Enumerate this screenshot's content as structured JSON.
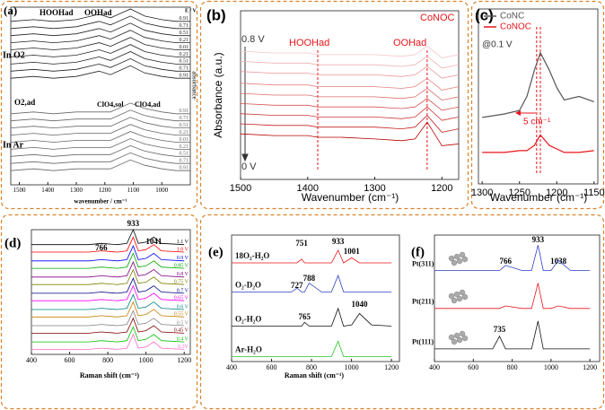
{
  "chart_data": [
    {
      "type": "line",
      "panel_label": "(a)",
      "xlabel": "wavenumber / cm⁻¹",
      "ylabel": "absorbance",
      "annotations": [
        "HOOHad",
        "OOHad",
        "E / V",
        "In O2",
        "O2,ad",
        "ClO4,sol",
        "ClO4,ad",
        "In Ar"
      ],
      "xlim": [
        1530,
        900
      ],
      "ylim": [
        0,
        100
      ],
      "xticks": [
        1500,
        1400,
        1300,
        1200,
        1100,
        1000
      ],
      "x": [
        1530,
        1450,
        1380,
        1300,
        1220,
        1180,
        1110,
        1060,
        1000,
        950,
        900
      ],
      "series": [
        {
          "name": "0.91",
          "color": "#222222",
          "values": [
            92,
            93,
            92,
            93,
            96,
            94,
            99,
            95,
            93,
            92,
            92
          ]
        },
        {
          "name": "0.71",
          "color": "#222222",
          "values": [
            88,
            89,
            88,
            89,
            92,
            90,
            95,
            91,
            89,
            88,
            88
          ]
        },
        {
          "name": "0.51",
          "color": "#222222",
          "values": [
            84,
            85,
            84,
            85,
            88,
            86,
            91,
            87,
            85,
            84,
            84
          ]
        },
        {
          "name": "0.21",
          "color": "#222222",
          "values": [
            80,
            81,
            80,
            81,
            84,
            82,
            87,
            83,
            81,
            80,
            80
          ]
        },
        {
          "name": "0.01",
          "color": "#222222",
          "values": [
            76,
            77,
            76,
            77,
            80,
            78,
            83,
            79,
            77,
            76,
            76
          ]
        },
        {
          "name": "0.21",
          "color": "#222222",
          "values": [
            72,
            73,
            72,
            73,
            76,
            74,
            79,
            75,
            73,
            72,
            72
          ]
        },
        {
          "name": "0.51",
          "color": "#222222",
          "values": [
            68,
            69,
            68,
            69,
            72,
            70,
            75,
            71,
            69,
            68,
            68
          ]
        },
        {
          "name": "0.71",
          "color": "#222222",
          "values": [
            64,
            65,
            64,
            65,
            68,
            66,
            71,
            67,
            65,
            64,
            64
          ]
        },
        {
          "name": "0.91",
          "color": "#222222",
          "values": [
            60,
            61,
            60,
            61,
            64,
            62,
            67,
            63,
            61,
            60,
            60
          ]
        },
        {
          "name": "0.91",
          "color": "#666666",
          "values": [
            40,
            41,
            40,
            41,
            41,
            41,
            46,
            43,
            41,
            40,
            40
          ]
        },
        {
          "name": "0.71",
          "color": "#666666",
          "values": [
            36,
            37,
            36,
            37,
            37,
            37,
            42,
            39,
            37,
            36,
            36
          ]
        },
        {
          "name": "0.51",
          "color": "#666666",
          "values": [
            32,
            33,
            32,
            33,
            33,
            33,
            38,
            35,
            33,
            32,
            32
          ]
        },
        {
          "name": "0.21",
          "color": "#666666",
          "values": [
            28,
            29,
            28,
            29,
            29,
            29,
            34,
            31,
            29,
            28,
            28
          ]
        },
        {
          "name": "0.01",
          "color": "#666666",
          "values": [
            24,
            25,
            24,
            25,
            25,
            25,
            30,
            27,
            25,
            24,
            24
          ]
        },
        {
          "name": "0.21",
          "color": "#666666",
          "values": [
            20,
            21,
            20,
            21,
            21,
            21,
            26,
            23,
            21,
            20,
            20
          ]
        },
        {
          "name": "0.51",
          "color": "#666666",
          "values": [
            16,
            17,
            16,
            17,
            17,
            17,
            22,
            19,
            17,
            16,
            16
          ]
        },
        {
          "name": "0.71",
          "color": "#666666",
          "values": [
            12,
            13,
            12,
            13,
            13,
            13,
            18,
            15,
            13,
            12,
            12
          ]
        },
        {
          "name": "0.91",
          "color": "#666666",
          "values": [
            8,
            9,
            8,
            9,
            9,
            9,
            14,
            11,
            9,
            8,
            8
          ]
        }
      ]
    },
    {
      "type": "line",
      "panel_label": "(b)",
      "xlabel": "Wavenumber (cm⁻¹)",
      "ylabel": "Absorbance (a.u.)",
      "annotations": [
        "CoNOC",
        "0.8 V",
        "0 V",
        "HOOHad",
        "OOHad"
      ],
      "xlim": [
        1500,
        1175
      ],
      "ylim": [
        0,
        100
      ],
      "xticks": [
        1500,
        1400,
        1300,
        1200
      ],
      "markers": [
        1385,
        1222
      ],
      "x": [
        1500,
        1450,
        1400,
        1385,
        1350,
        1300,
        1260,
        1240,
        1222,
        1200,
        1175
      ],
      "series": [
        {
          "color": "#f4c6c6",
          "values": [
            76,
            75,
            75,
            74,
            74,
            74,
            73,
            74,
            79,
            72,
            74
          ]
        },
        {
          "color": "#efb0b0",
          "values": [
            70,
            69,
            69,
            68,
            68,
            68,
            67,
            68,
            73,
            66,
            68
          ]
        },
        {
          "color": "#e99a9a",
          "values": [
            64,
            63,
            63,
            62,
            62,
            62,
            61,
            62,
            67,
            60,
            62
          ]
        },
        {
          "color": "#e48282",
          "values": [
            57,
            56,
            56,
            55,
            55,
            55,
            54,
            55,
            60,
            53,
            55
          ]
        },
        {
          "color": "#de6b6b",
          "values": [
            51,
            50,
            50,
            49,
            49,
            49,
            48,
            49,
            54,
            47,
            49
          ]
        },
        {
          "color": "#d75252",
          "values": [
            45,
            44,
            44,
            43,
            43,
            43,
            42,
            43,
            48,
            41,
            43
          ]
        },
        {
          "color": "#cf3838",
          "values": [
            39,
            38,
            38,
            37,
            37,
            37,
            36,
            37,
            43,
            35,
            37
          ]
        },
        {
          "color": "#c62020",
          "values": [
            33,
            32,
            32,
            31,
            31,
            31,
            30,
            31,
            38,
            28,
            30
          ]
        },
        {
          "color": "#b80000",
          "values": [
            27,
            26,
            26,
            25,
            25,
            24,
            23,
            24,
            34,
            20,
            21
          ]
        }
      ]
    },
    {
      "type": "line",
      "panel_label": "(c)",
      "xlabel": "Wavenumber (cm⁻¹)",
      "annotations": [
        "@0.1 V",
        "5 cm⁻¹"
      ],
      "xlim": [
        1305,
        1145
      ],
      "ylim": [
        0,
        100
      ],
      "xticks": [
        1300,
        1250,
        1200,
        1150
      ],
      "markers": [
        1227,
        1222
      ],
      "legend": "upper left",
      "x": [
        1300,
        1270,
        1250,
        1240,
        1230,
        1222,
        1210,
        1200,
        1190,
        1170,
        1150
      ],
      "series": [
        {
          "name": "CoNC",
          "color": "#555555",
          "values": [
            38,
            40,
            42,
            50,
            65,
            75,
            65,
            55,
            48,
            50,
            47
          ]
        },
        {
          "name": "CoNOC",
          "color": "#e8141a",
          "values": [
            18,
            18,
            19,
            19,
            22,
            28,
            22,
            20,
            18,
            18,
            19
          ]
        }
      ]
    },
    {
      "type": "line",
      "panel_label": "(d)",
      "xlabel": "Raman shift (cm⁻¹)",
      "peak_labels": [
        933,
        766,
        1041
      ],
      "xlim": [
        400,
        1232
      ],
      "ylim": [
        0,
        100
      ],
      "xticks": [
        400,
        600,
        800,
        1000,
        1200
      ],
      "x": [
        400,
        600,
        700,
        766,
        850,
        900,
        933,
        960,
        1000,
        1041,
        1080,
        1200
      ],
      "series": [
        {
          "name": "1.1 V",
          "color": "#000000",
          "values": [
            88,
            88,
            88,
            89,
            88,
            89,
            100,
            89,
            90,
            94,
            89,
            88
          ]
        },
        {
          "name": "1.0 V",
          "color": "#ff0000",
          "values": [
            82,
            82,
            82,
            83,
            82,
            83,
            94,
            83,
            84,
            88,
            83,
            82
          ]
        },
        {
          "name": "0.9 V",
          "color": "#0000ff",
          "values": [
            75,
            75,
            75,
            76,
            75,
            76,
            87,
            76,
            77,
            81,
            76,
            75
          ]
        },
        {
          "name": "0.85 V",
          "color": "#00aa00",
          "values": [
            69,
            69,
            69,
            70,
            69,
            70,
            81,
            70,
            71,
            75,
            70,
            69
          ]
        },
        {
          "name": "0.8 V",
          "color": "#800080",
          "values": [
            62,
            62,
            62,
            63,
            62,
            63,
            74,
            63,
            64,
            68,
            63,
            62
          ]
        },
        {
          "name": "0.75 V",
          "color": "#808000",
          "values": [
            56,
            56,
            56,
            57,
            56,
            57,
            68,
            57,
            58,
            62,
            57,
            56
          ]
        },
        {
          "name": "0.7 V",
          "color": "#000080",
          "values": [
            49,
            49,
            49,
            50,
            49,
            50,
            61,
            50,
            51,
            55,
            50,
            49
          ]
        },
        {
          "name": "0.65 V",
          "color": "#ff00ff",
          "values": [
            43,
            43,
            43,
            44,
            43,
            44,
            55,
            44,
            45,
            49,
            44,
            43
          ]
        },
        {
          "name": "0.6 V",
          "color": "#008080",
          "values": [
            36,
            36,
            36,
            37,
            36,
            37,
            48,
            37,
            38,
            42,
            37,
            36
          ]
        },
        {
          "name": "0.55 V",
          "color": "#c08000",
          "values": [
            30,
            30,
            30,
            31,
            30,
            31,
            42,
            31,
            32,
            36,
            31,
            30
          ]
        },
        {
          "name": "0.5 V",
          "color": "#808080",
          "values": [
            23,
            23,
            23,
            24,
            23,
            24,
            35,
            24,
            25,
            29,
            24,
            23
          ]
        },
        {
          "name": "0.45 V",
          "color": "#800000",
          "values": [
            17,
            17,
            17,
            18,
            17,
            18,
            29,
            18,
            19,
            23,
            18,
            17
          ]
        },
        {
          "name": "0.4 V",
          "color": "#00c000",
          "values": [
            10,
            10,
            10,
            11,
            10,
            11,
            22,
            11,
            12,
            16,
            11,
            10
          ]
        },
        {
          "name": "0.3V",
          "color": "#ff66cc",
          "values": [
            4,
            4,
            4,
            5,
            4,
            5,
            16,
            5,
            6,
            10,
            5,
            4
          ]
        }
      ]
    },
    {
      "type": "line",
      "panel_label": "(e)",
      "xlabel": "Raman shift (cm⁻¹)",
      "peak_labels": [
        751,
        933,
        1001,
        727,
        788,
        765,
        1040
      ],
      "xlim": [
        400,
        1240
      ],
      "ylim": [
        0,
        100
      ],
      "xticks": [
        400,
        600,
        800,
        1000,
        1200
      ],
      "x": [
        400,
        600,
        700,
        727,
        751,
        765,
        788,
        850,
        900,
        933,
        960,
        1001,
        1040,
        1100,
        1200
      ],
      "series": [
        {
          "name": "18O₂-H₂O",
          "color": "#e8141a",
          "values": [
            78,
            78,
            78,
            78,
            81,
            78,
            78,
            78,
            78,
            88,
            78,
            82,
            78,
            78,
            78
          ]
        },
        {
          "name": "O₂-D₂O",
          "color": "#2b3fc4",
          "values": [
            55,
            55,
            55,
            58,
            55,
            55,
            62,
            55,
            55,
            68,
            55,
            55,
            55,
            55,
            55
          ]
        },
        {
          "name": "O₂-H₂O",
          "color": "#111111",
          "values": [
            28,
            28,
            28,
            28,
            28,
            31,
            28,
            28,
            28,
            42,
            28,
            29,
            38,
            29,
            28
          ]
        },
        {
          "name": "Ar-H₂O",
          "color": "#22c422",
          "values": [
            4,
            4,
            4,
            4,
            4,
            4,
            4,
            4,
            4,
            16,
            4,
            4,
            4,
            4,
            4
          ]
        }
      ]
    },
    {
      "type": "line",
      "panel_label": "(f)",
      "peak_labels": [
        933,
        766,
        1038,
        735
      ],
      "xlim": [
        400,
        1250
      ],
      "ylim": [
        0,
        100
      ],
      "xticks": [
        400,
        600,
        800,
        1000,
        1200
      ],
      "x": [
        400,
        600,
        700,
        735,
        766,
        850,
        900,
        933,
        960,
        1000,
        1038,
        1100,
        1200
      ],
      "series": [
        {
          "name": "Pt(311)",
          "color": "#2b3fc4",
          "values": [
            72,
            72,
            72,
            72,
            76,
            72,
            72,
            92,
            72,
            72,
            80,
            72,
            72
          ]
        },
        {
          "name": "Pt(211)",
          "color": "#e8141a",
          "values": [
            42,
            42,
            42,
            42,
            44,
            42,
            42,
            62,
            42,
            42,
            44,
            42,
            42
          ]
        },
        {
          "name": "Pt(111)",
          "color": "#111111",
          "values": [
            10,
            10,
            10,
            20,
            10,
            10,
            10,
            32,
            10,
            10,
            10,
            10,
            10
          ]
        }
      ]
    }
  ]
}
